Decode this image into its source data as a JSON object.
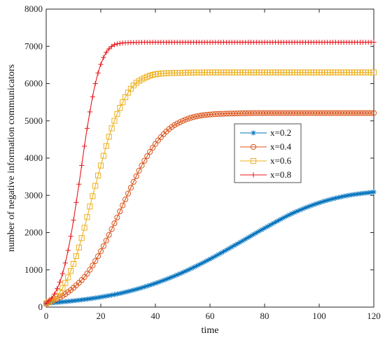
{
  "chart_data": {
    "type": "line",
    "title": "",
    "xlabel": "time",
    "ylabel": "number of negative information communicators",
    "xlim": [
      0,
      120
    ],
    "ylim": [
      0,
      8000
    ],
    "xticks": [
      0,
      20,
      40,
      60,
      80,
      100,
      120
    ],
    "yticks": [
      0,
      1000,
      2000,
      3000,
      4000,
      5000,
      6000,
      7000,
      8000
    ],
    "grid": false,
    "legend_position": "center-right",
    "series": [
      {
        "name": "x=0.2",
        "color": "#0072BD",
        "marker": "asterisk",
        "x": [
          0,
          10,
          20,
          30,
          40,
          50,
          60,
          70,
          80,
          90,
          100,
          110,
          120
        ],
        "y": [
          100,
          170,
          270,
          420,
          640,
          930,
          1290,
          1700,
          2120,
          2510,
          2800,
          2990,
          3090
        ]
      },
      {
        "name": "x=0.4",
        "color": "#D95319",
        "marker": "circle",
        "x": [
          0,
          5,
          10,
          15,
          20,
          25,
          30,
          35,
          40,
          45,
          50,
          55,
          60,
          70,
          80,
          90,
          100,
          110,
          120
        ],
        "y": [
          100,
          260,
          520,
          900,
          1500,
          2250,
          3050,
          3800,
          4380,
          4780,
          5000,
          5120,
          5170,
          5200,
          5210,
          5210,
          5210,
          5210,
          5210
        ]
      },
      {
        "name": "x=0.6",
        "color": "#EDB120",
        "marker": "square",
        "x": [
          0,
          4,
          8,
          12,
          16,
          20,
          24,
          28,
          32,
          36,
          40,
          50,
          60,
          80,
          100,
          120
        ],
        "y": [
          100,
          300,
          800,
          1600,
          2700,
          3800,
          4800,
          5500,
          5950,
          6150,
          6250,
          6290,
          6300,
          6300,
          6300,
          6300
        ]
      },
      {
        "name": "x=0.8",
        "color": "#E8161B",
        "marker": "plus",
        "x": [
          0,
          3,
          6,
          9,
          12,
          15,
          18,
          21,
          24,
          27,
          30,
          40,
          60,
          80,
          100,
          120
        ],
        "y": [
          100,
          350,
          900,
          1900,
          3300,
          4800,
          6000,
          6700,
          7000,
          7080,
          7100,
          7110,
          7110,
          7110,
          7110,
          7110
        ]
      }
    ]
  }
}
